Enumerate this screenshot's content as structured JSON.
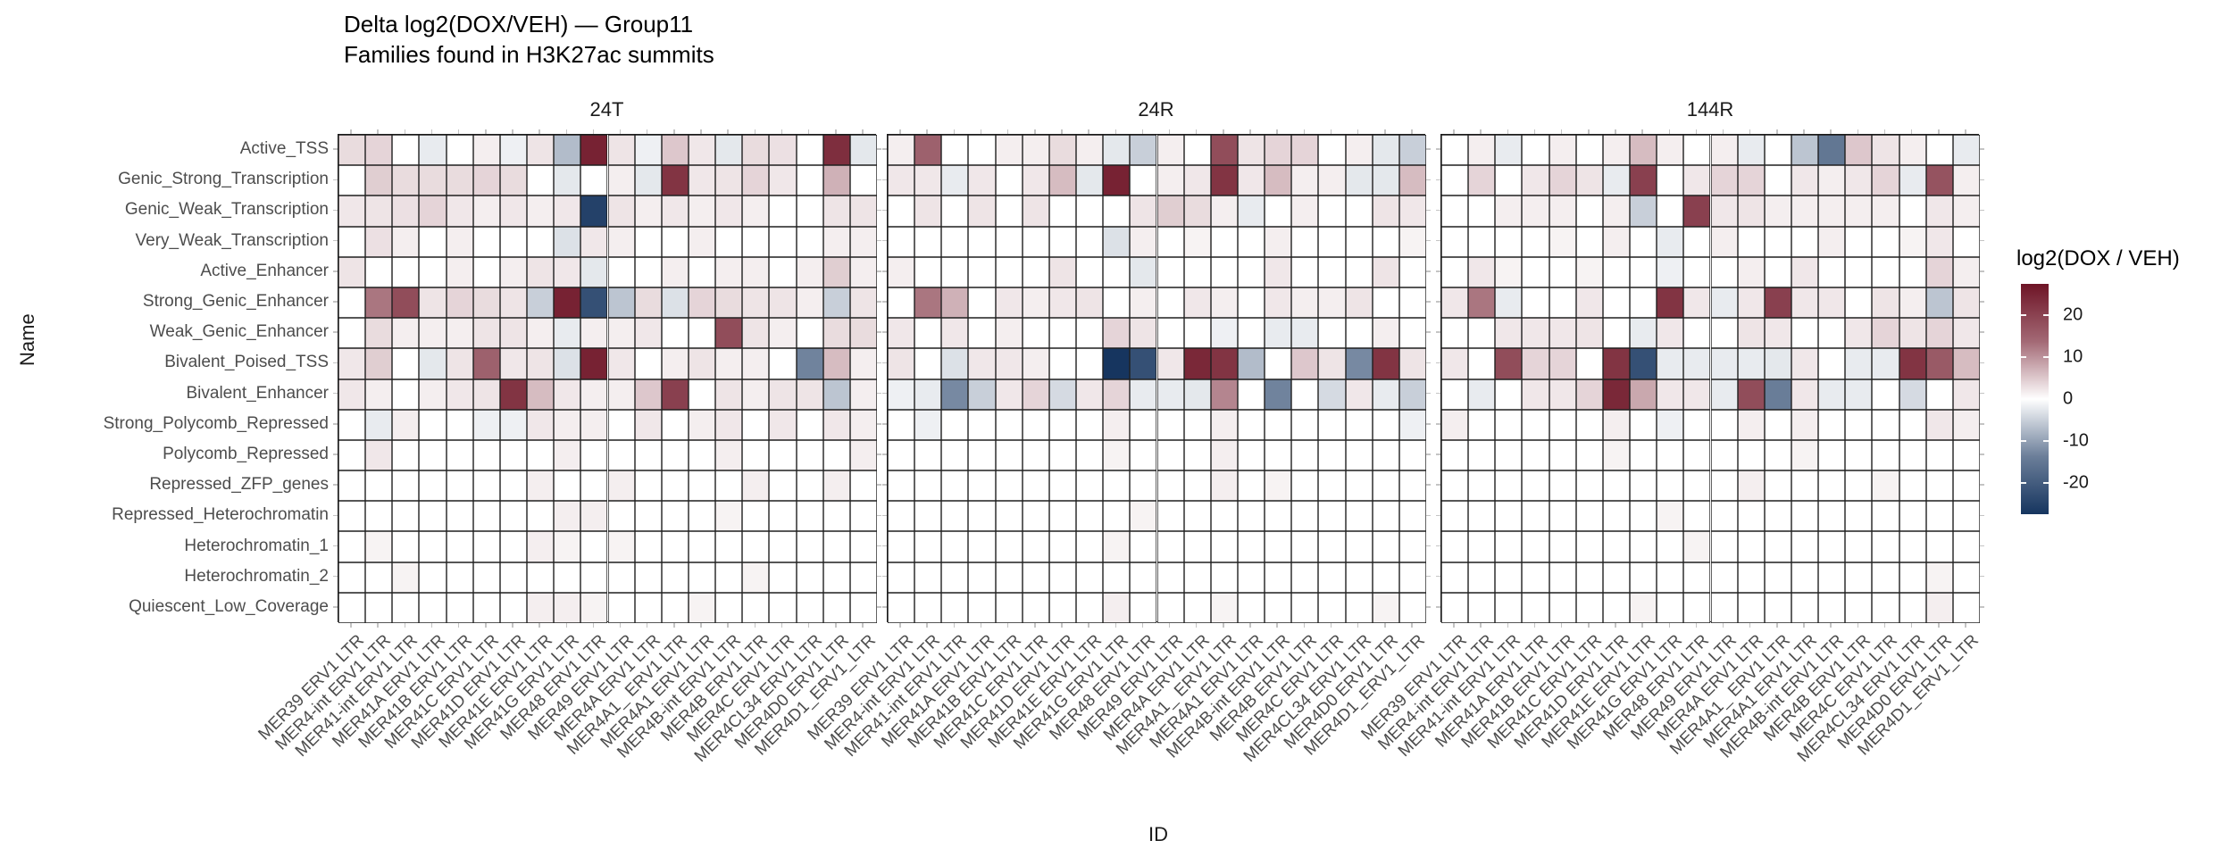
{
  "header": {
    "title": "Delta log2(DOX/VEH) — Group11",
    "subtitle": "Families found in H3K27ac summits"
  },
  "chart_data": {
    "type": "heatmap",
    "title": "Delta log2(DOX/VEH) — Group11",
    "subtitle": "Families found in H3K27ac summits",
    "xlabel": "ID",
    "ylabel": "Name",
    "grid": true,
    "legend": {
      "title": "log2(DOX / VEH)",
      "position": "right",
      "ticks": [
        20,
        10,
        0,
        -10,
        -20
      ],
      "domain": [
        -27.5,
        27.5
      ],
      "color_positive": "#6e1426",
      "color_zero": "#ffffff",
      "color_negative": "#16355f"
    },
    "x_categories": [
      "MER39 ERV1 LTR",
      "MER4-int ERV1 LTR",
      "MER41-int ERV1 LTR",
      "MER41A ERV1 LTR",
      "MER41B ERV1 LTR",
      "MER41C ERV1 LTR",
      "MER41D ERV1 LTR",
      "MER41E ERV1 LTR",
      "MER41G ERV1 LTR",
      "MER48 ERV1 LTR",
      "MER49 ERV1 LTR",
      "MER4A ERV1 LTR",
      "MER4A1_ ERV1 LTR",
      "MER4A1 ERV1 LTR",
      "MER4B-int ERV1 LTR",
      "MER4B ERV1 LTR",
      "MER4C ERV1 LTR",
      "MER4CL34 ERV1 LTR",
      "MER4D0 ERV1 LTR",
      "MER4D1_ERV1_LTR"
    ],
    "y_categories": [
      "Active_TSS",
      "Genic_Strong_Transcription",
      "Genic_Weak_Transcription",
      "Very_Weak_Transcription",
      "Active_Enhancer",
      "Strong_Genic_Enhancer",
      "Weak_Genic_Enhancer",
      "Bivalent_Poised_TSS",
      "Bivalent_Enhancer",
      "Strong_Polycomb_Repressed",
      "Polycomb_Repressed",
      "Repressed_ZFP_genes",
      "Repressed_Heterochromatin",
      "Heterochromatin_1",
      "Heterochromatin_2",
      "Quiescent_Low_Coverage"
    ],
    "facets": [
      {
        "name": "24T",
        "values": [
          [
            1.5,
            2,
            0,
            -0.8,
            0,
            0.5,
            -0.5,
            1,
            -5,
            25,
            1,
            -0.5,
            3,
            0.8,
            -1,
            1.5,
            1.2,
            0,
            23,
            -1
          ],
          [
            0,
            2.5,
            1.5,
            1.5,
            1.5,
            2,
            1.5,
            0,
            -1,
            0,
            0.5,
            -1,
            22,
            0.8,
            1,
            2,
            0.8,
            0,
            5,
            0
          ],
          [
            0.8,
            1,
            1.2,
            2,
            0.8,
            0.5,
            0.8,
            0.5,
            0.8,
            -25,
            1,
            0.5,
            0.8,
            0.5,
            0.8,
            0.5,
            0,
            0,
            1,
            1
          ],
          [
            0,
            1.2,
            0.5,
            0,
            0.5,
            0,
            0,
            0,
            -1.5,
            0.8,
            0.5,
            0,
            0,
            0.5,
            0,
            0,
            0,
            0,
            0.5,
            0.5
          ],
          [
            1,
            0,
            0,
            0,
            0.5,
            0,
            0.5,
            1,
            0.8,
            -1,
            0,
            0,
            0.5,
            0,
            0.5,
            0.5,
            0,
            0.5,
            2.5,
            0.5
          ],
          [
            0,
            12,
            18,
            1,
            2,
            1.5,
            1,
            -3,
            25,
            -22,
            -4,
            1.5,
            -1.5,
            2,
            1.5,
            1,
            1,
            0.5,
            -3,
            1
          ],
          [
            0,
            1.5,
            0.5,
            0.5,
            0.5,
            1,
            1,
            0.5,
            -0.8,
            0.5,
            0.5,
            0.8,
            0,
            0,
            18,
            1,
            0.5,
            0,
            1.5,
            1.5
          ],
          [
            0.8,
            2.5,
            0,
            -1,
            1,
            15,
            0.8,
            1,
            -1.5,
            25,
            0.8,
            0,
            0.5,
            1,
            0.5,
            0.5,
            0,
            -13,
            4,
            0.5
          ],
          [
            0.8,
            0.5,
            0,
            0.5,
            0.8,
            1,
            22,
            4,
            0.8,
            0.5,
            0.5,
            3,
            20,
            0,
            1,
            0.5,
            1,
            1,
            -4,
            0.5
          ],
          [
            0,
            -0.8,
            0.5,
            0,
            0,
            -0.5,
            -0.5,
            0.8,
            0.5,
            0.5,
            0,
            0.8,
            0,
            0.5,
            0.8,
            0,
            0.8,
            0,
            0.8,
            0.5
          ],
          [
            0,
            0.8,
            0,
            0,
            0,
            0,
            0,
            0,
            0.5,
            0,
            0,
            0,
            0,
            0,
            0.5,
            0,
            0,
            0,
            0,
            0.5
          ],
          [
            0,
            0,
            0,
            0,
            0,
            0,
            0,
            0.5,
            0,
            0,
            0.5,
            0,
            0,
            0,
            0,
            0.5,
            0,
            0,
            0.5,
            0
          ],
          [
            0,
            0,
            0,
            0,
            0,
            0,
            0,
            0,
            0.5,
            0.5,
            0,
            0,
            0,
            0,
            0.3,
            0,
            0,
            0,
            0,
            0
          ],
          [
            0,
            0.3,
            0,
            0,
            0,
            0,
            0,
            0.5,
            0.3,
            0,
            0.3,
            0,
            0,
            0,
            0,
            0,
            0,
            0,
            0,
            0
          ],
          [
            0,
            0,
            0.3,
            0,
            0,
            0,
            0,
            0,
            0,
            0,
            0,
            0,
            0,
            0,
            0,
            0.3,
            0,
            0,
            0,
            0
          ],
          [
            0,
            0,
            0,
            0,
            0,
            0,
            0,
            0.5,
            0.5,
            0.3,
            0,
            0,
            0,
            0.3,
            0,
            0,
            0,
            0,
            0,
            0
          ]
        ]
      },
      {
        "name": "24R",
        "values": [
          [
            0.5,
            15,
            0,
            0,
            0.5,
            0.5,
            1.5,
            0.5,
            -1,
            -3,
            0.5,
            0,
            18,
            1,
            2,
            2,
            0,
            0.5,
            -1,
            -3
          ],
          [
            0.8,
            0.8,
            -0.8,
            0.8,
            0,
            0.8,
            4,
            -1,
            25,
            0,
            0.5,
            0.8,
            22,
            0.8,
            4,
            0.5,
            0.5,
            -1,
            -1,
            4
          ],
          [
            0,
            1,
            0,
            1,
            0,
            1,
            0,
            0,
            0,
            1,
            2.5,
            1.5,
            0.5,
            -0.8,
            0,
            0.5,
            0,
            0,
            1,
            0.8
          ],
          [
            0,
            0,
            0,
            0,
            0,
            0,
            0,
            0,
            -1.5,
            0.5,
            0,
            0.3,
            0,
            0,
            0.5,
            0,
            0,
            0,
            0,
            0.3
          ],
          [
            0.5,
            0,
            0,
            0,
            0,
            0,
            1,
            0,
            0,
            -1,
            0,
            0,
            0,
            0,
            0.8,
            0,
            0,
            0,
            1,
            0
          ],
          [
            0,
            12,
            5,
            0,
            0.8,
            0.5,
            0.8,
            1,
            0,
            0.5,
            0,
            0.8,
            0.5,
            0,
            0.8,
            0.5,
            0.5,
            1,
            0,
            0
          ],
          [
            0.8,
            0,
            0.8,
            0,
            0.5,
            0,
            0,
            0,
            2,
            1,
            0,
            0,
            -0.5,
            0,
            -0.8,
            -0.8,
            0,
            0,
            0.5,
            0
          ],
          [
            1,
            0,
            -1.5,
            0.8,
            0.8,
            0.5,
            0,
            0,
            -28,
            -22,
            0.8,
            24,
            22,
            -5,
            0,
            3,
            1,
            -12,
            22,
            1
          ],
          [
            -0.5,
            -0.8,
            -12,
            -3,
            0.8,
            2,
            -2,
            0.8,
            2,
            -0.8,
            -0.8,
            -1,
            10,
            0,
            -13,
            0,
            -2,
            0.8,
            -0.8,
            -3
          ],
          [
            0,
            -0.5,
            0,
            0,
            0,
            0,
            0,
            0,
            0.5,
            0,
            0,
            0,
            0.5,
            0,
            0,
            0,
            0,
            0,
            0,
            -0.5
          ],
          [
            0,
            0,
            0,
            0,
            0,
            0,
            0,
            0,
            0.3,
            0,
            0,
            0,
            0.5,
            0,
            0,
            0,
            0,
            0,
            0,
            0
          ],
          [
            0,
            0,
            0,
            0,
            0,
            0,
            0,
            0,
            0,
            0,
            0,
            0,
            0.5,
            0,
            0.3,
            0,
            0,
            0,
            0,
            0
          ],
          [
            0,
            0,
            0,
            0,
            0,
            0,
            0,
            0,
            0,
            0.3,
            0,
            0,
            0,
            0,
            0,
            0,
            0,
            0,
            0,
            0
          ],
          [
            0,
            0,
            0,
            0,
            0,
            0,
            0,
            0,
            0.3,
            0,
            0,
            0,
            0,
            0,
            0,
            0,
            0,
            0,
            0,
            0
          ],
          [
            0,
            0,
            0,
            0,
            0,
            0,
            0,
            0,
            0,
            0,
            0,
            0,
            0,
            0,
            0,
            0,
            0,
            0,
            0,
            0
          ],
          [
            0,
            0,
            0,
            0,
            0,
            0,
            0,
            0,
            0.5,
            0,
            0,
            0,
            0.3,
            0,
            0,
            0,
            0,
            0,
            0.3,
            0
          ]
        ]
      },
      {
        "name": "144R",
        "values": [
          [
            0,
            0.5,
            -0.8,
            0,
            0.5,
            0,
            0.5,
            4,
            0.5,
            0,
            0.5,
            -0.8,
            0,
            -4,
            -15,
            3,
            1,
            0.5,
            0,
            -0.8
          ],
          [
            0,
            2,
            0,
            0.8,
            2,
            1,
            -0.8,
            20,
            0,
            0.8,
            2,
            2,
            0,
            0.8,
            0.5,
            0.8,
            2,
            -0.8,
            17,
            0.5
          ],
          [
            0,
            0,
            0.5,
            0.5,
            0.5,
            0,
            0.5,
            -3,
            0,
            20,
            0.8,
            1,
            0.5,
            0.5,
            0.5,
            0.5,
            0.5,
            0,
            0.8,
            0.5
          ],
          [
            0,
            0,
            0,
            0,
            0.3,
            0,
            0.5,
            0,
            -0.8,
            0,
            0.5,
            0,
            0,
            0,
            0.5,
            0,
            0,
            0.3,
            0.8,
            0
          ],
          [
            0,
            0.8,
            0.3,
            0,
            0,
            0.3,
            0,
            0,
            -0.5,
            0,
            0,
            0.5,
            0,
            0.8,
            0,
            0,
            0,
            0,
            2,
            0.5
          ],
          [
            0.8,
            12,
            -0.8,
            0,
            0,
            0.8,
            0,
            0,
            22,
            0.8,
            -0.8,
            0.8,
            20,
            0.8,
            0.8,
            0,
            1,
            0.5,
            -4,
            1
          ],
          [
            0,
            0,
            0.8,
            0.8,
            0.8,
            1,
            0,
            -0.8,
            0.8,
            0,
            0,
            1,
            0.8,
            0,
            0,
            0.8,
            2,
            1,
            2,
            0.8
          ],
          [
            0.8,
            0,
            18,
            2,
            2,
            0,
            22,
            -22,
            -0.8,
            -0.8,
            -0.8,
            -0.8,
            -1,
            0.8,
            0,
            -0.8,
            -0.8,
            22,
            16,
            4
          ],
          [
            0,
            -0.8,
            0,
            0.8,
            0.8,
            2,
            24,
            6,
            0.8,
            0.8,
            -0.8,
            18,
            -14,
            0.8,
            -0.8,
            -0.8,
            0,
            -2,
            0,
            0.8
          ],
          [
            0.5,
            0,
            0,
            0,
            0,
            0,
            0.5,
            0,
            -0.5,
            0,
            0,
            0.5,
            0,
            0.5,
            0,
            0,
            0,
            0,
            0.8,
            0.5
          ],
          [
            0,
            0,
            0,
            0,
            0,
            0,
            0.3,
            0,
            0,
            0,
            0,
            0,
            0,
            0.3,
            0,
            0,
            0,
            0,
            0,
            0
          ],
          [
            0,
            0,
            0,
            0,
            0,
            0,
            0,
            0,
            0,
            0,
            0,
            0.5,
            0,
            0,
            0,
            0,
            0.3,
            0,
            0,
            0
          ],
          [
            0,
            0,
            0,
            0,
            0,
            0,
            0,
            0,
            0.3,
            0,
            0,
            0,
            0,
            0,
            0,
            0,
            0,
            0,
            0,
            0
          ],
          [
            0,
            0,
            0,
            0,
            0,
            0,
            0,
            0,
            0,
            0.3,
            0,
            0,
            0,
            0,
            0,
            0,
            0,
            0,
            0,
            0
          ],
          [
            0,
            0,
            0,
            0,
            0,
            0,
            0,
            0,
            0,
            0,
            0,
            0,
            0,
            0,
            0,
            0,
            0,
            0,
            0.3,
            0
          ],
          [
            0,
            0,
            0,
            0,
            0,
            0,
            0,
            0.3,
            0,
            0,
            0,
            0,
            0,
            0,
            0,
            0,
            0,
            0,
            0.5,
            0
          ]
        ]
      }
    ]
  }
}
